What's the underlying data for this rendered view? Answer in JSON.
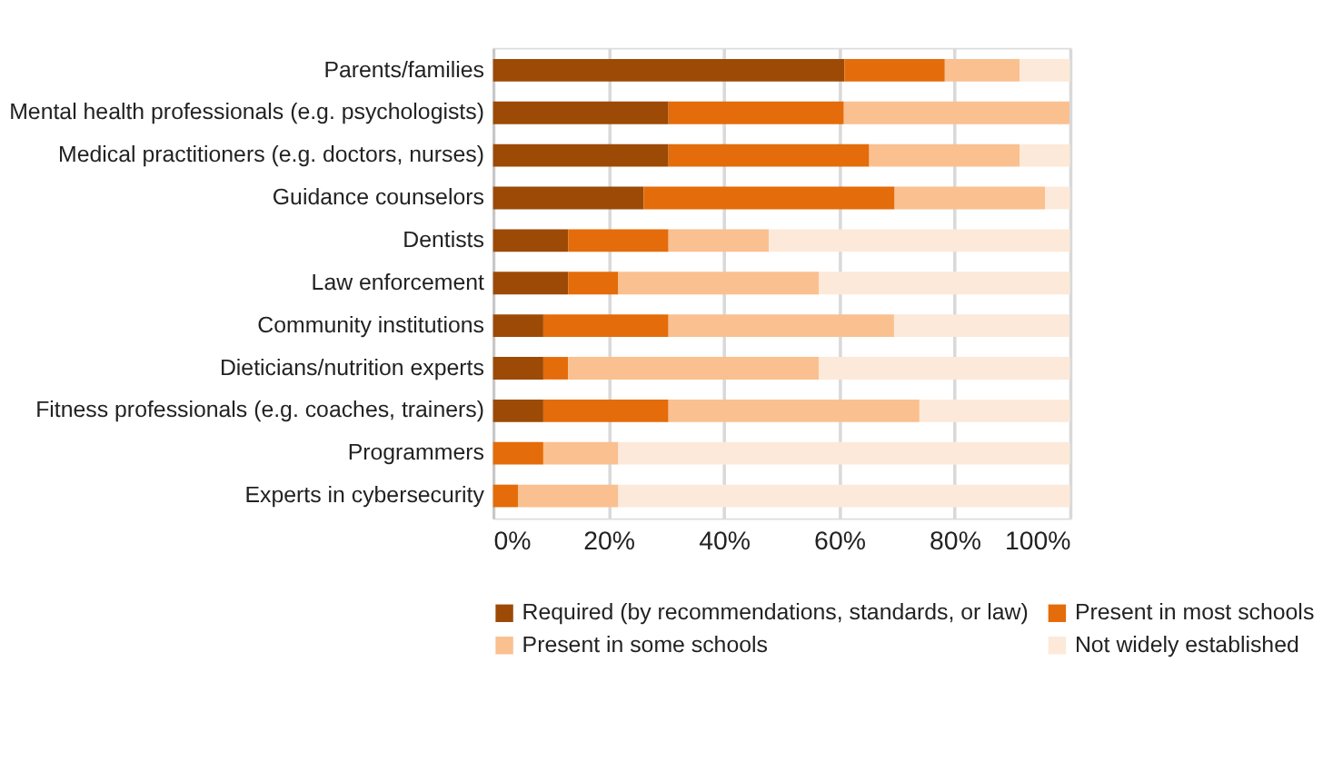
{
  "chart_data": {
    "type": "bar",
    "orientation": "horizontal",
    "stacked": true,
    "categories": [
      "Parents/families",
      "Mental health professionals (e.g. psychologists)",
      "Medical practitioners (e.g. doctors, nurses)",
      "Guidance counselors",
      "Dentists",
      "Law enforcement",
      "Community institutions",
      "Dieticians/nutrition experts",
      "Fitness professionals (e.g. coaches, trainers)",
      "Programmers",
      "Experts in cybersecurity"
    ],
    "series": [
      {
        "name": "Required (by recommendations, standards, or law)",
        "color": "#9c4a06",
        "values": [
          60.9,
          30.4,
          30.4,
          26.1,
          13.0,
          13.0,
          8.7,
          8.7,
          8.7,
          0,
          0
        ]
      },
      {
        "name": "Present in most schools",
        "color": "#e46c0a",
        "values": [
          17.4,
          30.4,
          34.8,
          43.5,
          17.4,
          8.7,
          21.7,
          4.3,
          21.7,
          8.7,
          4.3
        ]
      },
      {
        "name": "Present in some schools",
        "color": "#fac090",
        "values": [
          13.0,
          39.1,
          26.1,
          26.1,
          17.4,
          34.8,
          39.1,
          43.5,
          43.5,
          13.0,
          17.4
        ]
      },
      {
        "name": "Not widely established",
        "color": "#fde9d9",
        "values": [
          8.7,
          0,
          8.7,
          4.3,
          52.2,
          43.5,
          30.4,
          43.5,
          26.1,
          78.3,
          78.3
        ]
      }
    ],
    "xlim": [
      0,
      100
    ],
    "xticks": [
      {
        "value": 0,
        "label": "0%"
      },
      {
        "value": 20,
        "label": "20%"
      },
      {
        "value": 40,
        "label": "40%"
      },
      {
        "value": 60,
        "label": "60%"
      },
      {
        "value": 80,
        "label": "80%"
      },
      {
        "value": 100,
        "label": "100%"
      }
    ],
    "grid": "x",
    "legend": "bottom"
  }
}
